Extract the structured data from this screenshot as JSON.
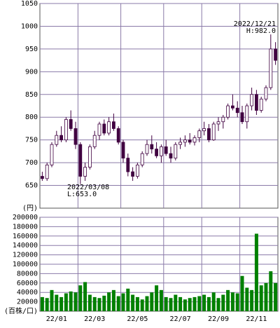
{
  "chart_data": [
    {
      "type": "candlestick",
      "color": "#400040",
      "grid": true,
      "ylabel": "(円)",
      "ylim": [
        600,
        1050
      ],
      "yticks": [
        650,
        700,
        750,
        800,
        850,
        900,
        950,
        1000,
        1050
      ],
      "annotations": [
        [
          "2022/12/21",
          "H:982.0"
        ],
        [
          "2022/03/08",
          "L:653.0"
        ]
      ],
      "open": [
        670,
        665,
        695,
        740,
        760,
        750,
        795,
        775,
        740,
        670,
        690,
        735,
        760,
        785,
        765,
        790,
        775,
        745,
        710,
        680,
        670,
        695,
        720,
        740,
        730,
        715,
        735,
        720,
        710,
        740,
        745,
        750,
        745,
        755,
        770,
        775,
        750,
        785,
        790,
        800,
        825,
        820,
        810,
        790,
        825,
        850,
        815,
        840,
        865,
        950
      ],
      "high": [
        680,
        700,
        745,
        770,
        780,
        800,
        815,
        790,
        745,
        700,
        740,
        770,
        790,
        795,
        800,
        808,
        780,
        750,
        720,
        690,
        700,
        725,
        750,
        760,
        745,
        740,
        750,
        735,
        745,
        755,
        760,
        765,
        760,
        775,
        790,
        785,
        790,
        800,
        805,
        830,
        850,
        835,
        825,
        830,
        865,
        860,
        845,
        870,
        982,
        965
      ],
      "low": [
        660,
        660,
        690,
        735,
        745,
        745,
        770,
        730,
        653,
        660,
        685,
        730,
        750,
        760,
        760,
        770,
        740,
        700,
        670,
        660,
        665,
        690,
        715,
        720,
        710,
        700,
        715,
        700,
        705,
        730,
        735,
        740,
        738,
        745,
        760,
        745,
        748,
        770,
        775,
        795,
        815,
        800,
        785,
        775,
        815,
        805,
        810,
        835,
        860,
        915
      ],
      "close": [
        665,
        695,
        740,
        760,
        750,
        795,
        775,
        740,
        670,
        690,
        735,
        760,
        785,
        765,
        790,
        775,
        745,
        710,
        680,
        670,
        695,
        720,
        740,
        730,
        715,
        735,
        720,
        710,
        740,
        745,
        750,
        745,
        755,
        770,
        775,
        750,
        785,
        790,
        800,
        825,
        820,
        810,
        790,
        825,
        850,
        815,
        840,
        865,
        950,
        925
      ]
    },
    {
      "type": "bar",
      "color": "#008000",
      "grid": true,
      "ylabel": "(百株/口)",
      "ylim": [
        0,
        200000
      ],
      "yticks": [
        20000,
        40000,
        60000,
        80000,
        100000,
        120000,
        140000,
        160000,
        180000,
        200000
      ],
      "categories": [
        "22/01",
        null,
        null,
        null,
        null,
        null,
        null,
        null,
        "22/03",
        null,
        null,
        null,
        null,
        null,
        null,
        null,
        null,
        "22/05",
        null,
        null,
        null,
        null,
        null,
        null,
        null,
        null,
        "22/07",
        null,
        null,
        null,
        null,
        null,
        null,
        null,
        "22/09",
        null,
        null,
        null,
        null,
        null,
        null,
        null,
        "22/11",
        null,
        null,
        null,
        null,
        null,
        null,
        null
      ],
      "values": [
        30000,
        28000,
        45000,
        35000,
        30000,
        38000,
        42000,
        40000,
        55000,
        62000,
        35000,
        30000,
        28000,
        33000,
        40000,
        45000,
        32000,
        38000,
        48000,
        35000,
        30000,
        25000,
        32000,
        40000,
        55000,
        45000,
        30000,
        28000,
        35000,
        30000,
        25000,
        28000,
        30000,
        32000,
        35000,
        30000,
        40000,
        28000,
        35000,
        45000,
        40000,
        38000,
        75000,
        50000,
        45000,
        165000,
        55000,
        60000,
        85000,
        60000
      ]
    }
  ]
}
